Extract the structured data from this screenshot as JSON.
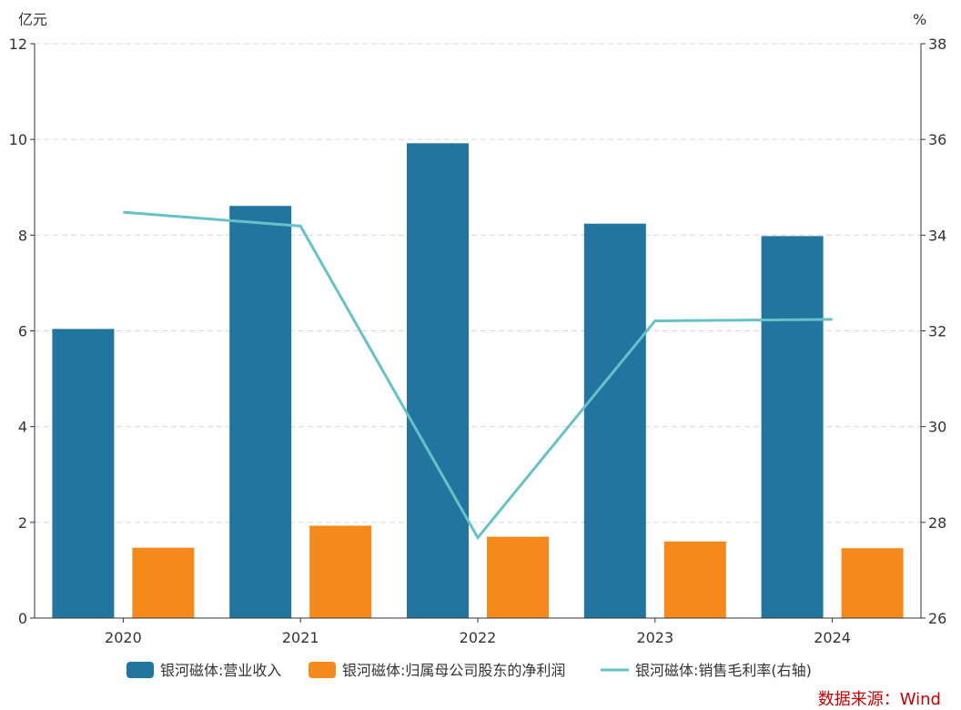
{
  "chart_data": {
    "type": "bar",
    "categories": [
      "2020",
      "2021",
      "2022",
      "2023",
      "2024"
    ],
    "left_axis": {
      "unit": "亿元",
      "ylim": [
        0,
        12
      ],
      "ticks": [
        0,
        2,
        4,
        6,
        8,
        10,
        12
      ]
    },
    "right_axis": {
      "unit": "%",
      "ylim": [
        26,
        38
      ],
      "ticks": [
        26,
        28,
        30,
        32,
        34,
        36,
        38
      ]
    },
    "series": [
      {
        "name": "银河磁体:营业收入",
        "type": "bar",
        "axis": "left",
        "color": "#21759f",
        "values": [
          6.04,
          8.61,
          9.92,
          8.24,
          7.98
        ]
      },
      {
        "name": "银河磁体:归属母公司股东的净利润",
        "type": "bar",
        "axis": "left",
        "color": "#f5891c",
        "values": [
          1.47,
          1.93,
          1.7,
          1.6,
          1.46
        ]
      },
      {
        "name": "银河磁体:销售毛利率(右轴)",
        "type": "line",
        "axis": "right",
        "color": "#66c2c8",
        "values": [
          34.48,
          34.19,
          27.68,
          32.21,
          32.24
        ]
      }
    ],
    "grid": true,
    "legend_position": "bottom-center",
    "source": "数据来源：Wind",
    "source_color": "#cc0000"
  }
}
